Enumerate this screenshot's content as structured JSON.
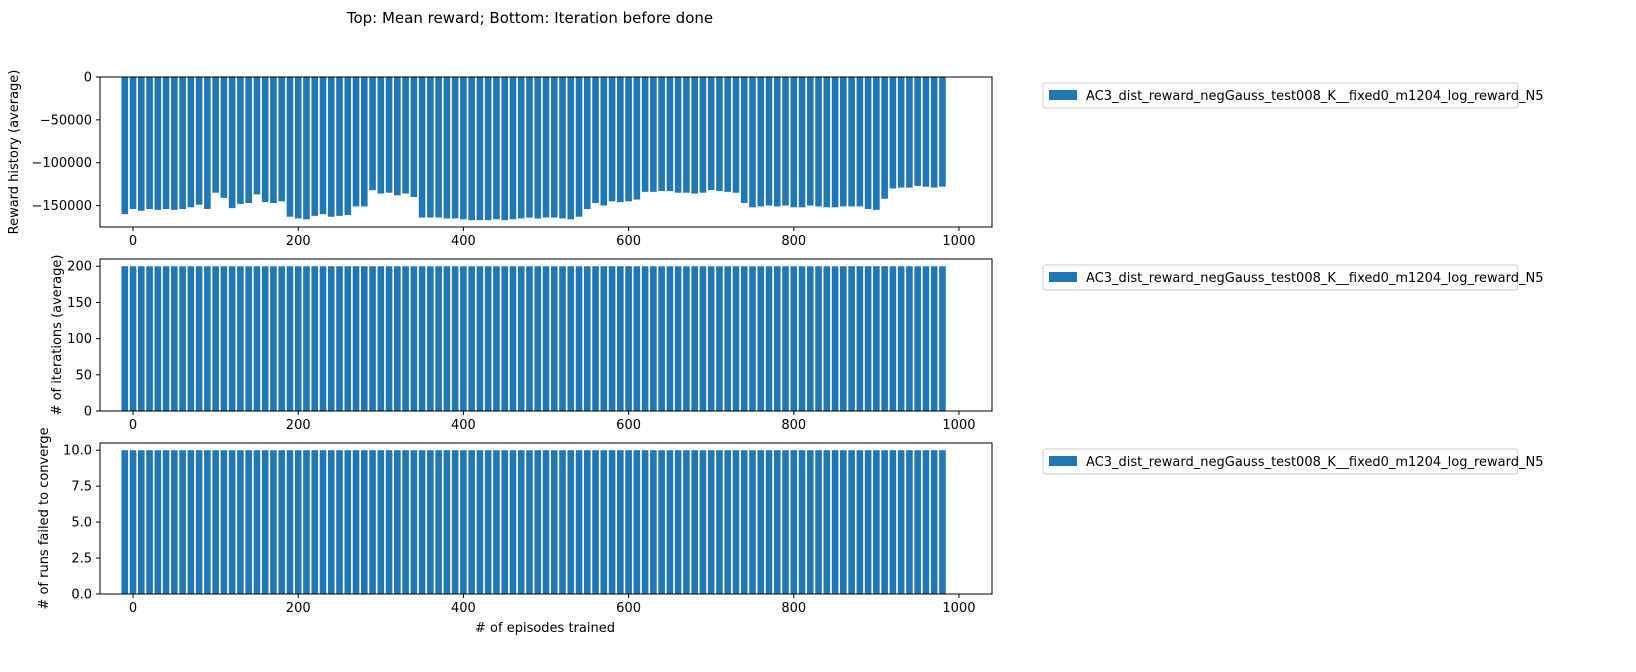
{
  "figure": {
    "suptitle": "Top: Mean reward; Bottom: Iteration before done",
    "bar_color": "#1f77b4"
  },
  "chart_data": [
    {
      "type": "bar",
      "title": "",
      "xlabel": "",
      "ylabel": "Reward history (average)",
      "xlim": [
        -40,
        1040
      ],
      "ylim": [
        -175000,
        0
      ],
      "x_ticks": [
        0,
        200,
        400,
        600,
        800,
        1000
      ],
      "x_tick_labels": [
        "0",
        "200",
        "400",
        "600",
        "800",
        "1000"
      ],
      "y_ticks": [
        0,
        -50000,
        -100000,
        -150000
      ],
      "y_tick_labels": [
        "0",
        "−50000",
        "−100000",
        "−150000"
      ],
      "bar_width": 8,
      "legend_placement": "outside-right-top",
      "series": [
        {
          "name": "AC3_dist_reward_negGauss_test008_K__fixed0_m1204_log_reward_N5",
          "x": [
            -10,
            0,
            10,
            20,
            30,
            40,
            50,
            60,
            70,
            80,
            90,
            100,
            110,
            120,
            130,
            140,
            150,
            160,
            170,
            180,
            190,
            200,
            210,
            220,
            230,
            240,
            250,
            260,
            270,
            280,
            290,
            300,
            310,
            320,
            330,
            340,
            350,
            360,
            370,
            380,
            390,
            400,
            410,
            420,
            430,
            440,
            450,
            460,
            470,
            480,
            490,
            500,
            510,
            520,
            530,
            540,
            550,
            560,
            570,
            580,
            590,
            600,
            610,
            620,
            630,
            640,
            650,
            660,
            670,
            680,
            690,
            700,
            710,
            720,
            730,
            740,
            750,
            760,
            770,
            780,
            790,
            800,
            810,
            820,
            830,
            840,
            850,
            860,
            870,
            880,
            890,
            900,
            910,
            920,
            930,
            940,
            950,
            960,
            970,
            980
          ],
          "values": [
            -160000,
            -154000,
            -156000,
            -154000,
            -155000,
            -154000,
            -155000,
            -154000,
            -152000,
            -149000,
            -154000,
            -135000,
            -141000,
            -153000,
            -148000,
            -147000,
            -137000,
            -146000,
            -147000,
            -145000,
            -163000,
            -165000,
            -166000,
            -162000,
            -160000,
            -163000,
            -162000,
            -161000,
            -151000,
            -151000,
            -132000,
            -136000,
            -135000,
            -138000,
            -136000,
            -140000,
            -164000,
            -164000,
            -164000,
            -165000,
            -165000,
            -166000,
            -167000,
            -167000,
            -167000,
            -166000,
            -167000,
            -166000,
            -165000,
            -164000,
            -165000,
            -164000,
            -164000,
            -165000,
            -166000,
            -163000,
            -154000,
            -147000,
            -150000,
            -145000,
            -146000,
            -145000,
            -143000,
            -134000,
            -134000,
            -133000,
            -133000,
            -135000,
            -135000,
            -136000,
            -135000,
            -132000,
            -133000,
            -134000,
            -135000,
            -147000,
            -152000,
            -151000,
            -150000,
            -151000,
            -150000,
            -152000,
            -152000,
            -150000,
            -151000,
            -152000,
            -152000,
            -151000,
            -151000,
            -151000,
            -154000,
            -155000,
            -142000,
            -130000,
            -129000,
            -129000,
            -127000,
            -128000,
            -129000,
            -128000
          ]
        }
      ]
    },
    {
      "type": "bar",
      "title": "",
      "xlabel": "",
      "ylabel": "# of iterations (average)",
      "xlim": [
        -40,
        1040
      ],
      "ylim": [
        0,
        210
      ],
      "x_ticks": [
        0,
        200,
        400,
        600,
        800,
        1000
      ],
      "x_tick_labels": [
        "0",
        "200",
        "400",
        "600",
        "800",
        "1000"
      ],
      "y_ticks": [
        0,
        50,
        100,
        150,
        200
      ],
      "y_tick_labels": [
        "0",
        "50",
        "100",
        "150",
        "200"
      ],
      "bar_width": 8,
      "legend_placement": "outside-right-top",
      "series": [
        {
          "name": "AC3_dist_reward_negGauss_test008_K__fixed0_m1204_log_reward_N5",
          "x": [
            -10,
            0,
            10,
            20,
            30,
            40,
            50,
            60,
            70,
            80,
            90,
            100,
            110,
            120,
            130,
            140,
            150,
            160,
            170,
            180,
            190,
            200,
            210,
            220,
            230,
            240,
            250,
            260,
            270,
            280,
            290,
            300,
            310,
            320,
            330,
            340,
            350,
            360,
            370,
            380,
            390,
            400,
            410,
            420,
            430,
            440,
            450,
            460,
            470,
            480,
            490,
            500,
            510,
            520,
            530,
            540,
            550,
            560,
            570,
            580,
            590,
            600,
            610,
            620,
            630,
            640,
            650,
            660,
            670,
            680,
            690,
            700,
            710,
            720,
            730,
            740,
            750,
            760,
            770,
            780,
            790,
            800,
            810,
            820,
            830,
            840,
            850,
            860,
            870,
            880,
            890,
            900,
            910,
            920,
            930,
            940,
            950,
            960,
            970,
            980
          ],
          "values": [
            200,
            200,
            200,
            200,
            200,
            200,
            200,
            200,
            200,
            200,
            200,
            200,
            200,
            200,
            200,
            200,
            200,
            200,
            200,
            200,
            200,
            200,
            200,
            200,
            200,
            200,
            200,
            200,
            200,
            200,
            200,
            200,
            200,
            200,
            200,
            200,
            200,
            200,
            200,
            200,
            200,
            200,
            200,
            200,
            200,
            200,
            200,
            200,
            200,
            200,
            200,
            200,
            200,
            200,
            200,
            200,
            200,
            200,
            200,
            200,
            200,
            200,
            200,
            200,
            200,
            200,
            200,
            200,
            200,
            200,
            200,
            200,
            200,
            200,
            200,
            200,
            200,
            200,
            200,
            200,
            200,
            200,
            200,
            200,
            200,
            200,
            200,
            200,
            200,
            200,
            200,
            200,
            200,
            200,
            200,
            200,
            200,
            200,
            200,
            200
          ]
        }
      ]
    },
    {
      "type": "bar",
      "title": "",
      "xlabel": "# of episodes trained",
      "ylabel": "# of runs failed to converge",
      "xlim": [
        -40,
        1040
      ],
      "ylim": [
        0,
        10.5
      ],
      "x_ticks": [
        0,
        200,
        400,
        600,
        800,
        1000
      ],
      "x_tick_labels": [
        "0",
        "200",
        "400",
        "600",
        "800",
        "1000"
      ],
      "y_ticks": [
        0,
        2.5,
        5.0,
        7.5,
        10.0
      ],
      "y_tick_labels": [
        "0.0",
        "2.5",
        "5.0",
        "7.5",
        "10.0"
      ],
      "bar_width": 8,
      "legend_placement": "outside-right-top",
      "series": [
        {
          "name": "AC3_dist_reward_negGauss_test008_K__fixed0_m1204_log_reward_N5",
          "x": [
            -10,
            0,
            10,
            20,
            30,
            40,
            50,
            60,
            70,
            80,
            90,
            100,
            110,
            120,
            130,
            140,
            150,
            160,
            170,
            180,
            190,
            200,
            210,
            220,
            230,
            240,
            250,
            260,
            270,
            280,
            290,
            300,
            310,
            320,
            330,
            340,
            350,
            360,
            370,
            380,
            390,
            400,
            410,
            420,
            430,
            440,
            450,
            460,
            470,
            480,
            490,
            500,
            510,
            520,
            530,
            540,
            550,
            560,
            570,
            580,
            590,
            600,
            610,
            620,
            630,
            640,
            650,
            660,
            670,
            680,
            690,
            700,
            710,
            720,
            730,
            740,
            750,
            760,
            770,
            780,
            790,
            800,
            810,
            820,
            830,
            840,
            850,
            860,
            870,
            880,
            890,
            900,
            910,
            920,
            930,
            940,
            950,
            960,
            970,
            980
          ],
          "values": [
            10,
            10,
            10,
            10,
            10,
            10,
            10,
            10,
            10,
            10,
            10,
            10,
            10,
            10,
            10,
            10,
            10,
            10,
            10,
            10,
            10,
            10,
            10,
            10,
            10,
            10,
            10,
            10,
            10,
            10,
            10,
            10,
            10,
            10,
            10,
            10,
            10,
            10,
            10,
            10,
            10,
            10,
            10,
            10,
            10,
            10,
            10,
            10,
            10,
            10,
            10,
            10,
            10,
            10,
            10,
            10,
            10,
            10,
            10,
            10,
            10,
            10,
            10,
            10,
            10,
            10,
            10,
            10,
            10,
            10,
            10,
            10,
            10,
            10,
            10,
            10,
            10,
            10,
            10,
            10,
            10,
            10,
            10,
            10,
            10,
            10,
            10,
            10,
            10,
            10,
            10,
            10,
            10,
            10,
            10,
            10,
            10,
            10,
            10,
            10
          ]
        }
      ]
    }
  ]
}
